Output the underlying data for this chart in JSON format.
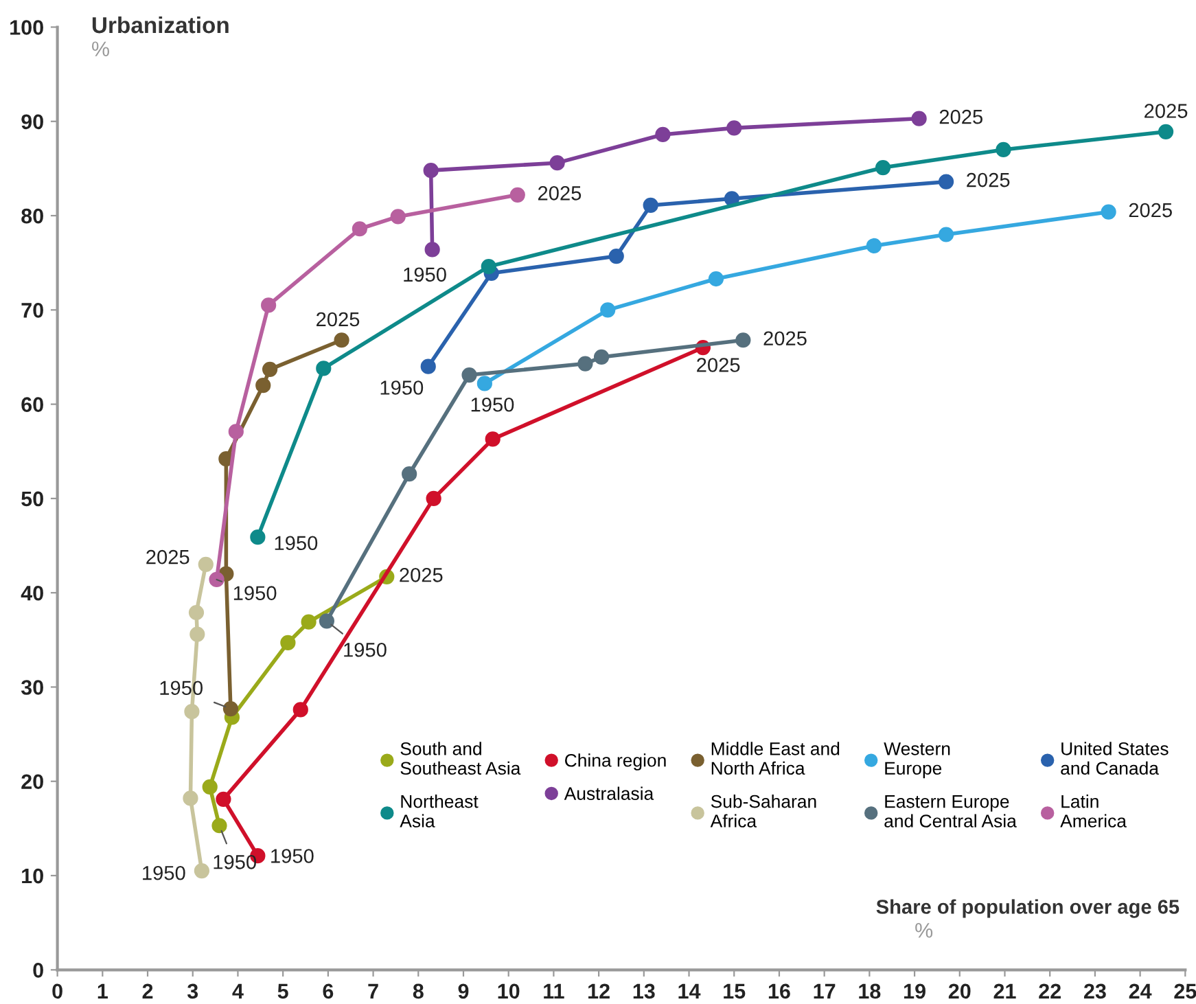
{
  "chart_data": {
    "type": "line",
    "xlabel": "Share of population over age 65\n%",
    "ylabel": "Urbanization\n%",
    "xlim": [
      0,
      25
    ],
    "ylim": [
      0,
      100
    ],
    "xticks": [
      0,
      1,
      2,
      3,
      4,
      5,
      6,
      7,
      8,
      9,
      10,
      11,
      12,
      13,
      14,
      15,
      16,
      17,
      18,
      19,
      20,
      21,
      22,
      23,
      24,
      25
    ],
    "yticks": [
      0,
      10,
      20,
      30,
      40,
      50,
      60,
      70,
      80,
      90,
      100
    ],
    "grid": false,
    "legend": "bottom right",
    "marker": "circle",
    "line_style": "solid",
    "series": [
      {
        "name": "South and\nSoutheast Asia",
        "color": "#9aaa1a",
        "x": [
          3.59,
          3.38,
          3.87,
          5.11,
          5.57,
          7.3
        ],
        "values": [
          15.3,
          19.4,
          26.8,
          34.7,
          36.9,
          41.7
        ]
      },
      {
        "name": "China region",
        "color": "#d0102a",
        "x": [
          4.44,
          3.68,
          5.39,
          8.34,
          9.65,
          14.31
        ],
        "values": [
          12.1,
          18.1,
          27.6,
          50.0,
          56.3,
          66.0
        ]
      },
      {
        "name": "Middle East and\nNorth Africa",
        "color": "#7a6030",
        "x": [
          3.84,
          3.74,
          3.74,
          4.56,
          4.71,
          6.3
        ],
        "values": [
          27.7,
          42.0,
          54.2,
          62.0,
          63.7,
          66.8
        ]
      },
      {
        "name": "Western\nEurope",
        "color": "#35a8e0",
        "x": [
          9.47,
          12.2,
          14.6,
          18.1,
          19.7,
          23.3
        ],
        "values": [
          62.2,
          70.0,
          73.3,
          76.8,
          78.0,
          80.4
        ]
      },
      {
        "name": "United States\nand Canada",
        "color": "#2a62ad",
        "x": [
          8.22,
          9.62,
          12.39,
          13.15,
          14.95,
          19.7
        ],
        "values": [
          64.0,
          73.9,
          75.7,
          81.1,
          81.8,
          83.6
        ]
      },
      {
        "name": "Northeast\nAsia",
        "color": "#0e8a8a",
        "x": [
          4.44,
          5.9,
          9.56,
          18.3,
          20.97,
          24.57
        ],
        "values": [
          45.9,
          63.8,
          74.6,
          85.1,
          87.0,
          88.9
        ]
      },
      {
        "name": "Australasia",
        "color": "#7d3f98",
        "x": [
          8.31,
          8.28,
          11.08,
          13.42,
          15.0,
          19.1
        ],
        "values": [
          76.4,
          84.8,
          85.6,
          88.6,
          89.3,
          90.3
        ]
      },
      {
        "name": "Sub-Saharan\nAfrica",
        "color": "#c8c49c",
        "x": [
          3.2,
          2.95,
          2.98,
          3.1,
          3.08,
          3.29
        ],
        "values": [
          10.5,
          18.2,
          27.4,
          35.6,
          37.9,
          43.0
        ]
      },
      {
        "name": "Eastern Europe\nand Central Asia",
        "color": "#56707e",
        "x": [
          5.97,
          7.8,
          9.13,
          11.7,
          12.06,
          15.2
        ],
        "values": [
          37.0,
          52.6,
          63.1,
          64.3,
          65.0,
          66.8
        ]
      },
      {
        "name": "Latin\nAmerica",
        "color": "#b8609f",
        "x": [
          3.53,
          3.96,
          4.68,
          6.7,
          7.55,
          10.2
        ],
        "values": [
          41.4,
          57.1,
          70.5,
          78.6,
          79.9,
          82.2
        ]
      }
    ],
    "annotations": [
      {
        "text": "1950",
        "x": 3.59,
        "y": 15.3
      },
      {
        "text": "2025",
        "x": 7.3,
        "y": 41.7
      },
      {
        "text": "1950",
        "x": 4.44,
        "y": 12.1
      },
      {
        "text": "2025",
        "x": 14.31,
        "y": 66.0
      },
      {
        "text": "1950",
        "x": 3.84,
        "y": 27.7
      },
      {
        "text": "2025",
        "x": 6.3,
        "y": 66.8
      },
      {
        "text": "1950",
        "x": 9.47,
        "y": 62.2
      },
      {
        "text": "2025",
        "x": 23.3,
        "y": 80.4
      },
      {
        "text": "1950",
        "x": 8.22,
        "y": 64.0
      },
      {
        "text": "2025",
        "x": 19.7,
        "y": 83.6
      },
      {
        "text": "1950",
        "x": 4.44,
        "y": 45.9
      },
      {
        "text": "2025",
        "x": 24.57,
        "y": 88.9
      },
      {
        "text": "1950",
        "x": 8.31,
        "y": 76.4
      },
      {
        "text": "2025",
        "x": 19.1,
        "y": 90.3
      },
      {
        "text": "1950",
        "x": 3.2,
        "y": 10.5
      },
      {
        "text": "2025",
        "x": 3.29,
        "y": 43.0
      },
      {
        "text": "1950",
        "x": 5.97,
        "y": 37.0
      },
      {
        "text": "2025",
        "x": 15.2,
        "y": 66.8
      },
      {
        "text": "1950",
        "x": 3.53,
        "y": 41.4
      },
      {
        "text": "2025",
        "x": 10.2,
        "y": 82.2
      }
    ]
  }
}
